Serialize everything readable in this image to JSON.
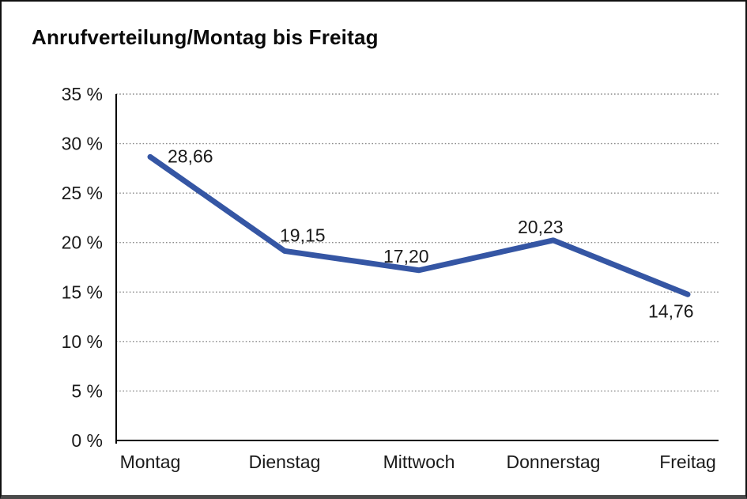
{
  "chart_data": {
    "type": "line",
    "title": "Anrufverteilung/Montag bis Freitag",
    "categories": [
      "Montag",
      "Dienstag",
      "Mittwoch",
      "Donnerstag",
      "Freitag"
    ],
    "series": [
      {
        "name": "Anrufverteilung",
        "values": [
          28.66,
          19.15,
          17.2,
          20.23,
          14.76
        ],
        "value_labels": [
          "28,66",
          "19,15",
          "17,20",
          "20,23",
          "14,76"
        ]
      }
    ],
    "xlabel": "",
    "ylabel": "",
    "ylim": [
      0,
      35
    ],
    "y_tick_step": 5,
    "y_tick_labels": [
      "35 %",
      "30 %",
      "25 %",
      "20 %",
      "15 %",
      "10 %",
      "5 %",
      "0 %"
    ],
    "grid": "horizontal-dotted",
    "legend_position": "none",
    "colors": {
      "line": "#3556A4",
      "gridline": "#8a8a8a",
      "axis": "#000000",
      "text": "#1a1a1a",
      "background": "#ffffff"
    }
  }
}
